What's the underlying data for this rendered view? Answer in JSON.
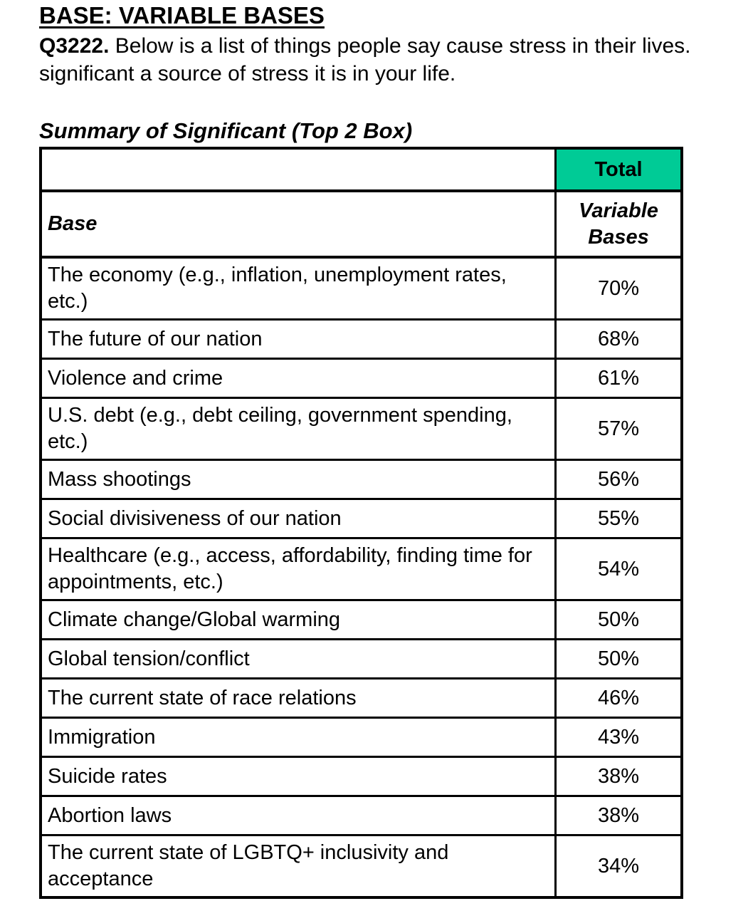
{
  "page": {
    "title": "BASE: VARIABLE BASES",
    "question_number": "Q3222.",
    "question_line1": " Below is a list of things people say cause stress in their lives.",
    "question_line2": "significant a source of stress it is in your life.",
    "table_title": "Summary of Significant (Top 2 Box)"
  },
  "table": {
    "total_header": "Total",
    "base_header": "Base",
    "subgroup_header": "Variable Bases",
    "accent_color": "#00CB96",
    "columns": [
      "Base",
      "Total — Variable Bases"
    ],
    "rows": [
      {
        "label": "The economy (e.g., inflation, unemployment rates, etc.)",
        "value": "70%"
      },
      {
        "label": "The future of our nation",
        "value": "68%"
      },
      {
        "label": "Violence and crime",
        "value": "61%"
      },
      {
        "label": "U.S. debt (e.g., debt ceiling, government spending, etc.)",
        "value": "57%"
      },
      {
        "label": "Mass shootings",
        "value": "56%"
      },
      {
        "label": "Social divisiveness of our nation",
        "value": "55%"
      },
      {
        "label": "Healthcare (e.g., access, affordability, finding time for appointments, etc.)",
        "value": "54%"
      },
      {
        "label": "Climate change/Global warming",
        "value": "50%"
      },
      {
        "label": "Global tension/conflict",
        "value": "50%"
      },
      {
        "label": "The current state of race relations",
        "value": "46%"
      },
      {
        "label": "Immigration",
        "value": "43%"
      },
      {
        "label": "Suicide rates",
        "value": "38%"
      },
      {
        "label": "Abortion laws",
        "value": "38%"
      },
      {
        "label": "The current state of LGBTQ+ inclusivity and acceptance",
        "value": "34%"
      }
    ]
  }
}
